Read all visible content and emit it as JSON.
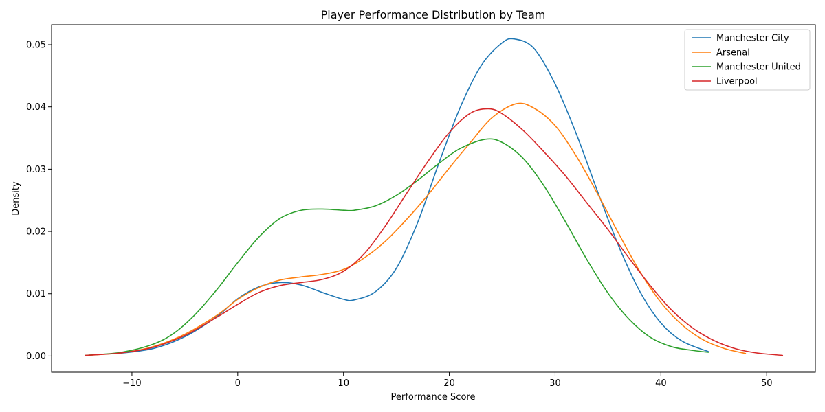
{
  "chart_data": {
    "type": "line",
    "title": "Player Performance Distribution by Team",
    "xlabel": "Performance Score",
    "ylabel": "Density",
    "xlim": [
      -17.6,
      54.6
    ],
    "ylim": [
      -0.0026,
      0.0532
    ],
    "x_ticks": [
      -10,
      0,
      10,
      20,
      30,
      40,
      50
    ],
    "x_tick_labels": [
      "−10",
      "0",
      "10",
      "20",
      "30",
      "40",
      "50"
    ],
    "y_ticks": [
      0.0,
      0.01,
      0.02,
      0.03,
      0.04,
      0.05
    ],
    "y_tick_labels": [
      "0.00",
      "0.01",
      "0.02",
      "0.03",
      "0.04",
      "0.05"
    ],
    "grid": false,
    "legend_position": "top-right",
    "series": [
      {
        "name": "Manchester City",
        "color": "#1f77b4",
        "x": [
          -11.3,
          -8,
          -5,
          -2,
          0,
          2,
          4,
          6,
          8,
          10,
          11,
          13,
          15,
          17,
          19,
          21,
          23,
          25,
          26.2,
          28,
          30,
          32,
          34,
          36,
          38,
          40,
          42,
          44.5
        ],
        "y": [
          0.0004,
          0.0012,
          0.0031,
          0.0063,
          0.0092,
          0.0111,
          0.0118,
          0.0114,
          0.0102,
          0.0091,
          0.009,
          0.0103,
          0.0141,
          0.0214,
          0.0309,
          0.0398,
          0.0466,
          0.0503,
          0.0509,
          0.0494,
          0.0437,
          0.0357,
          0.0265,
          0.0177,
          0.0104,
          0.0053,
          0.0024,
          0.0007
        ]
      },
      {
        "name": "Arsenal",
        "color": "#ff7f0e",
        "x": [
          -14.4,
          -11,
          -8,
          -5,
          -2,
          0,
          2,
          4,
          6,
          8,
          10,
          12,
          14,
          16,
          18,
          20,
          22,
          24,
          26.3,
          28,
          30,
          32,
          34,
          36,
          38,
          40,
          42,
          44,
          46,
          48
        ],
        "y": [
          0.0001,
          0.0005,
          0.0015,
          0.0035,
          0.0065,
          0.0091,
          0.011,
          0.0122,
          0.0127,
          0.0131,
          0.0139,
          0.0158,
          0.0185,
          0.022,
          0.0259,
          0.0302,
          0.0343,
          0.0382,
          0.0405,
          0.0398,
          0.037,
          0.0321,
          0.0261,
          0.0197,
          0.0136,
          0.0086,
          0.005,
          0.0026,
          0.0012,
          0.0004
        ]
      },
      {
        "name": "Manchester United",
        "color": "#2ca02c",
        "x": [
          -14.4,
          -11,
          -8,
          -6,
          -4,
          -2,
          0,
          2,
          4,
          6,
          8,
          10,
          11,
          13,
          15,
          17,
          19,
          21,
          23.4,
          25,
          27,
          29,
          31,
          33,
          35,
          37,
          39,
          41,
          43,
          44.5
        ],
        "y": [
          0.0001,
          0.0006,
          0.0019,
          0.0037,
          0.0067,
          0.0106,
          0.015,
          0.0191,
          0.0221,
          0.0234,
          0.0236,
          0.0234,
          0.0234,
          0.0241,
          0.0258,
          0.0282,
          0.0309,
          0.0333,
          0.0348,
          0.0343,
          0.0317,
          0.0272,
          0.0215,
          0.0155,
          0.0101,
          0.0059,
          0.003,
          0.0015,
          0.0009,
          0.0006
        ]
      },
      {
        "name": "Liverpool",
        "color": "#d62728",
        "x": [
          -14.4,
          -11,
          -8,
          -5,
          -2,
          0,
          2,
          4,
          6,
          8,
          10,
          12,
          14,
          16,
          18,
          20,
          22,
          23.7,
          25,
          27,
          29,
          31,
          33,
          35,
          37,
          39,
          41,
          43,
          45,
          47,
          49,
          51.5
        ],
        "y": [
          0.0001,
          0.0005,
          0.0014,
          0.0033,
          0.0062,
          0.0083,
          0.0102,
          0.0113,
          0.0118,
          0.0123,
          0.0136,
          0.0165,
          0.021,
          0.0262,
          0.0313,
          0.0359,
          0.039,
          0.0397,
          0.0389,
          0.0362,
          0.0327,
          0.0289,
          0.0246,
          0.0203,
          0.0157,
          0.0113,
          0.0074,
          0.0045,
          0.0025,
          0.0012,
          0.0005,
          0.0001
        ]
      }
    ]
  }
}
